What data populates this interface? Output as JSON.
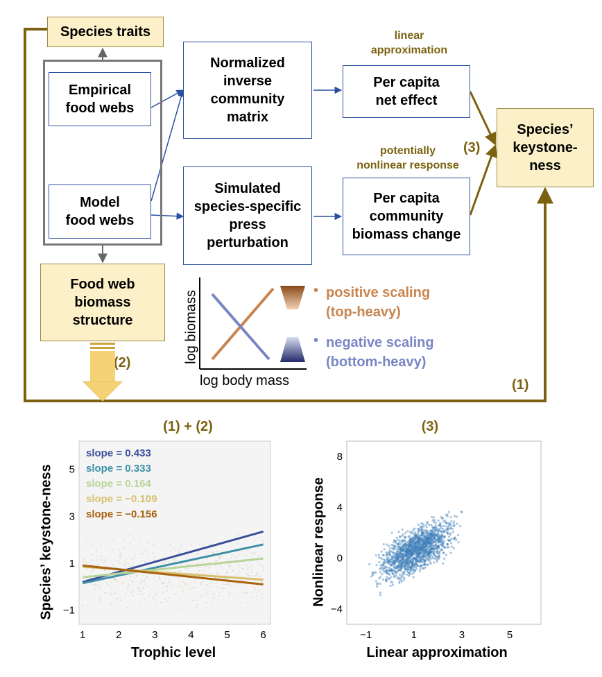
{
  "colors": {
    "blue_box": "#2a4fa0",
    "tan_fill": "#fbf0c8",
    "olive": "#7a6210",
    "positive": "#c8844e",
    "negative": "#7a86c4",
    "scatter": "#3f7fb8"
  },
  "diagram": {
    "species_traits": "Species traits",
    "empirical": "Empirical\nfood webs",
    "model": "Model\nfood webs",
    "inverse_matrix": "Normalized\ninverse\ncommunity\nmatrix",
    "simulated": "Simulated\nspecies-specific\npress\nperturbation",
    "net_effect": "Per capita\nnet effect",
    "biomass_change": "Per capita\ncommunity\nbiomass change",
    "keystoneness": "Species’\nkeystone-\nness",
    "biomass_structure": "Food web\nbiomass\nstructure",
    "linear_label": "linear\napproximation",
    "nonlinear_label": "potentially\nnonlinear response",
    "marker_1": "(1)",
    "marker_2": "(2)",
    "marker_3": "(3)"
  },
  "inset": {
    "xlabel": "log body mass",
    "ylabel": "log biomass",
    "positive_label": "positive scaling\n(top-heavy)",
    "negative_label": "negative scaling\n(bottom-heavy)"
  },
  "chart_data": [
    {
      "type": "line",
      "title": "(1) + (2)",
      "xlabel": "Trophic level",
      "ylabel": "Species’ keystone-ness",
      "xlim": [
        0.9,
        6.2
      ],
      "ylim": [
        -1.6,
        6.2
      ],
      "xticks": [
        "1",
        "2",
        "3",
        "4",
        "5",
        "6"
      ],
      "yticks": [
        "−1",
        "1",
        "3",
        "5"
      ],
      "series": [
        {
          "name": "slope = 0.433",
          "color": "#3a4f9a",
          "x": [
            1,
            6
          ],
          "y": [
            0.2,
            2.35
          ]
        },
        {
          "name": "slope = 0.333",
          "color": "#3c8fa6",
          "x": [
            1,
            6
          ],
          "y": [
            0.15,
            1.8
          ]
        },
        {
          "name": "slope = 0.164",
          "color": "#b9d49a",
          "x": [
            1,
            6
          ],
          "y": [
            0.4,
            1.2
          ]
        },
        {
          "name": "slope = −0.109",
          "color": "#d8c070",
          "x": [
            1,
            6
          ],
          "y": [
            0.85,
            0.3
          ]
        },
        {
          "name": "slope = −0.156",
          "color": "#a8620e",
          "x": [
            1,
            6
          ],
          "y": [
            0.9,
            0.1
          ]
        }
      ]
    },
    {
      "type": "scatter",
      "title": "(3)",
      "xlabel": "Linear approximation",
      "ylabel": "Nonlinear response",
      "xlim": [
        -1.8,
        6.3
      ],
      "ylim": [
        -5.2,
        9.2
      ],
      "xticks": [
        "−1",
        "1",
        "3",
        "5"
      ],
      "yticks": [
        "−4",
        "0",
        "4",
        "8"
      ],
      "trend": "dense cloud centered near (1, 1), spreading up to (3, 4)"
    }
  ]
}
